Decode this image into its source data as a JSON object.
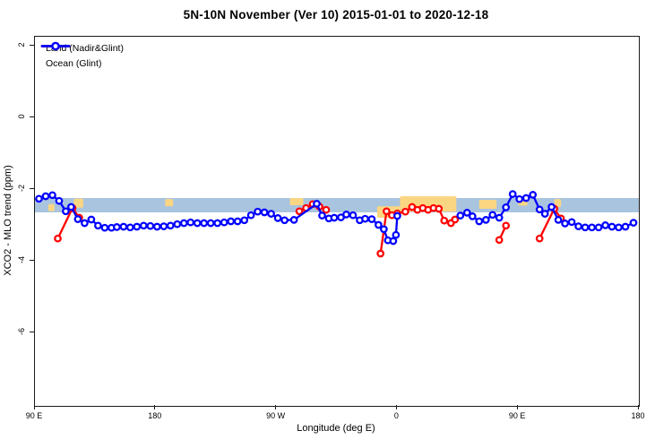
{
  "title": "5N-10N November (Ver 10)   2015-01-01 to 2020-12-18",
  "axes": {
    "x_label": "Longitude (deg E)",
    "y_label": "XCO2 - MLO trend (ppm)"
  },
  "legend": {
    "items": [
      {
        "label": "Land (Nadir&Glint)",
        "color": "#FF0000"
      },
      {
        "label": "Ocean (Glint)",
        "color": "#0000FF"
      }
    ]
  },
  "chart_data": {
    "type": "line",
    "title": "5N-10N November (Ver 10)   2015-01-01 to 2020-12-18",
    "xlabel": "Longitude (deg E)",
    "ylabel": "XCO2 - MLO trend (ppm)",
    "xlim": [
      90,
      540
    ],
    "ylim": [
      -8.05,
      2.25
    ],
    "grid": false,
    "legend_position": "top-left-inside",
    "x_ticks": [
      {
        "value": 90,
        "label": "90 E"
      },
      {
        "value": 180,
        "label": "180"
      },
      {
        "value": 270,
        "label": "90 W"
      },
      {
        "value": 360,
        "label": "0"
      },
      {
        "value": 450,
        "label": "90 E"
      },
      {
        "value": 540,
        "label": "180"
      }
    ],
    "y_ticks": [
      {
        "value": 2,
        "label": "2"
      },
      {
        "value": 0,
        "label": "0"
      },
      {
        "value": -2,
        "label": "-2"
      },
      {
        "value": -4,
        "label": "-4"
      },
      {
        "value": -6,
        "label": "-6"
      }
    ],
    "bands": {
      "ocean_band": {
        "x": [
          90,
          540
        ],
        "y": [
          -2.25,
          -2.65
        ],
        "color": "#A9C4DF"
      },
      "land_band_segments": {
        "color": "#FBD682",
        "segments": [
          {
            "x": [
              100,
              104.5
            ],
            "y": [
              -2.42,
              -2.62
            ]
          },
          {
            "x": [
              119,
              126
            ],
            "y": [
              -2.27,
              -2.52
            ]
          },
          {
            "x": [
              187,
              193
            ],
            "y": [
              -2.28,
              -2.48
            ]
          },
          {
            "x": [
              280,
              290
            ],
            "y": [
              -2.25,
              -2.45
            ]
          },
          {
            "x": [
              345,
              362
            ],
            "y": [
              -2.48,
              -2.8
            ]
          },
          {
            "x": [
              362,
              404
            ],
            "y": [
              -2.2,
              -2.63
            ]
          },
          {
            "x": [
              421,
              434
            ],
            "y": [
              -2.3,
              -2.55
            ]
          },
          {
            "x": [
              450,
              457
            ],
            "y": [
              -2.26,
              -2.46
            ]
          },
          {
            "x": [
              477,
              482
            ],
            "y": [
              -2.28,
              -2.5
            ]
          }
        ]
      }
    },
    "marker": {
      "shape": "open-circle",
      "radius": 3.2,
      "fill": "#FFFFFF",
      "stroke_width": 2.3
    },
    "line_width": 2.3,
    "series": [
      {
        "name": "Land (Nadir&Glint)",
        "color": "#FF0000",
        "segments": [
          [
            [
              107,
              -3.38
            ],
            [
              118,
              -2.53
            ],
            [
              123,
              -2.8
            ]
          ],
          [
            [
              287,
              -2.62
            ],
            [
              292,
              -2.53
            ],
            [
              297,
              -2.42
            ],
            [
              302,
              -2.49
            ],
            [
              307,
              -2.58
            ]
          ],
          [
            [
              347.5,
              -3.8
            ],
            [
              352,
              -2.62
            ],
            [
              356,
              -2.73
            ],
            [
              360,
              -2.68
            ],
            [
              366,
              -2.63
            ],
            [
              371,
              -2.5
            ],
            [
              375,
              -2.58
            ],
            [
              379,
              -2.53
            ],
            [
              383,
              -2.58
            ],
            [
              387,
              -2.53
            ],
            [
              391,
              -2.55
            ],
            [
              395,
              -2.88
            ],
            [
              400,
              -2.95
            ],
            [
              403,
              -2.85
            ]
          ],
          [
            [
              436,
              -3.42
            ],
            [
              441,
              -3.02
            ]
          ],
          [
            [
              466,
              -3.38
            ],
            [
              477,
              -2.55
            ],
            [
              482,
              -2.82
            ]
          ]
        ]
      },
      {
        "name": "Ocean (Glint)",
        "color": "#0000FF",
        "segments": [
          [
            [
              93,
              -2.27
            ],
            [
              98,
              -2.2
            ],
            [
              103,
              -2.17
            ],
            [
              108,
              -2.33
            ],
            [
              113,
              -2.62
            ],
            [
              117,
              -2.5
            ],
            [
              122,
              -2.84
            ],
            [
              127,
              -2.95
            ],
            [
              132,
              -2.85
            ],
            [
              137,
              -3.02
            ],
            [
              142,
              -3.08
            ],
            [
              147,
              -3.08
            ],
            [
              151,
              -3.06
            ],
            [
              156,
              -3.05
            ],
            [
              161,
              -3.07
            ],
            [
              166,
              -3.05
            ],
            [
              171,
              -3.02
            ],
            [
              176,
              -3.03
            ],
            [
              181,
              -3.05
            ],
            [
              186,
              -3.04
            ],
            [
              191,
              -3.02
            ],
            [
              196,
              -2.98
            ],
            [
              201,
              -2.95
            ],
            [
              206,
              -2.93
            ],
            [
              211,
              -2.95
            ],
            [
              216,
              -2.95
            ],
            [
              221,
              -2.95
            ],
            [
              226,
              -2.95
            ],
            [
              231,
              -2.93
            ],
            [
              236,
              -2.9
            ],
            [
              241,
              -2.9
            ],
            [
              246,
              -2.87
            ],
            [
              251,
              -2.73
            ],
            [
              256,
              -2.63
            ],
            [
              261,
              -2.65
            ],
            [
              266,
              -2.69
            ],
            [
              271,
              -2.81
            ],
            [
              276,
              -2.87
            ],
            [
              283,
              -2.86
            ],
            [
              300,
              -2.41
            ],
            [
              304,
              -2.74
            ],
            [
              309,
              -2.82
            ],
            [
              313,
              -2.8
            ],
            [
              318,
              -2.79
            ],
            [
              322,
              -2.71
            ],
            [
              327,
              -2.73
            ],
            [
              332,
              -2.87
            ],
            [
              336,
              -2.83
            ],
            [
              341,
              -2.84
            ],
            [
              346,
              -3.0
            ],
            [
              350,
              -3.12
            ],
            [
              353,
              -3.43
            ],
            [
              357,
              -3.45
            ],
            [
              359,
              -3.28
            ],
            [
              360,
              -2.75
            ]
          ],
          [
            [
              407,
              -2.74
            ],
            [
              412,
              -2.66
            ],
            [
              416,
              -2.76
            ],
            [
              421,
              -2.9
            ],
            [
              426,
              -2.86
            ],
            [
              431,
              -2.72
            ],
            [
              436,
              -2.8
            ],
            [
              441,
              -2.51
            ],
            [
              446,
              -2.14
            ],
            [
              451,
              -2.28
            ],
            [
              456,
              -2.25
            ],
            [
              461,
              -2.16
            ],
            [
              466,
              -2.57
            ],
            [
              470,
              -2.69
            ],
            [
              475,
              -2.5
            ],
            [
              480,
              -2.86
            ],
            [
              485,
              -2.96
            ],
            [
              490,
              -2.92
            ],
            [
              495,
              -3.04
            ],
            [
              500,
              -3.07
            ],
            [
              505,
              -3.07
            ],
            [
              510,
              -3.07
            ],
            [
              515,
              -3.01
            ],
            [
              520,
              -3.05
            ],
            [
              525,
              -3.07
            ],
            [
              530,
              -3.05
            ],
            [
              536,
              -2.94
            ]
          ]
        ]
      }
    ]
  }
}
